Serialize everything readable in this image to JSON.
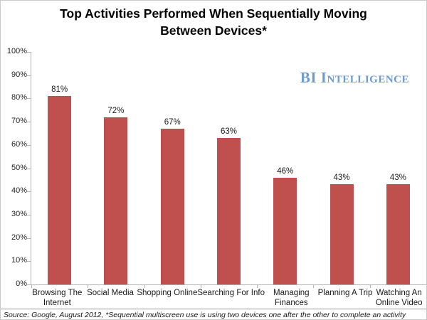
{
  "title": "Top Activities Performed When Sequentially Moving Between Devices*",
  "brand": {
    "name": "BI Intelligence",
    "color": "#6b9bd3"
  },
  "source_note": "Source: Google, August 2012,  *Sequential multiscreen use is using two devices one after the other to complete an activity",
  "chart_data": {
    "type": "bar",
    "title": "Top Activities Performed When Sequentially Moving Between Devices*",
    "categories": [
      "Browsing The Internet",
      "Social Media",
      "Shopping Online",
      "Searching For Info",
      "Managing Finances",
      "Planning A Trip",
      "Watching An Online Video"
    ],
    "category_label_lines": [
      [
        "Browsing The",
        "Internet"
      ],
      [
        "Social Media"
      ],
      [
        "Shopping Online"
      ],
      [
        "Searching For Info"
      ],
      [
        "Managing",
        "Finances"
      ],
      [
        "Planning A Trip"
      ],
      [
        "Watching An",
        "Online Video"
      ]
    ],
    "values": [
      81,
      72,
      67,
      63,
      46,
      43,
      43
    ],
    "data_labels": [
      "81%",
      "72%",
      "67%",
      "63%",
      "46%",
      "43%",
      "43%"
    ],
    "xlabel": "",
    "ylabel": "",
    "ylim": [
      0,
      100
    ],
    "ytick_step": 10,
    "ytick_labels": [
      "0%",
      "10%",
      "20%",
      "30%",
      "40%",
      "50%",
      "60%",
      "70%",
      "80%",
      "90%",
      "100%"
    ],
    "bar_color": "#c0504d",
    "axis_color": "#b3b3b3",
    "grid": false,
    "legend": false
  }
}
